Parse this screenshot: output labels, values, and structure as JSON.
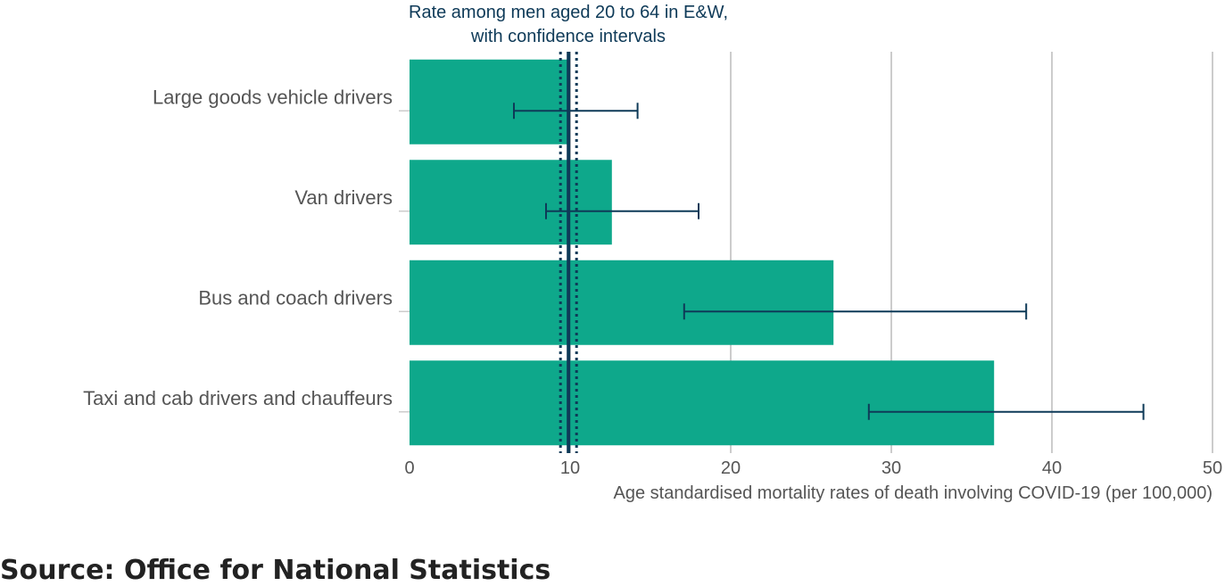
{
  "chart_data": {
    "type": "bar",
    "orientation": "horizontal",
    "categories": [
      "Large goods vehicle drivers",
      "Van drivers",
      "Bus and coach drivers",
      "Taxi and cab drivers and chauffeurs"
    ],
    "values": [
      9.9,
      12.6,
      26.4,
      36.4
    ],
    "ci_lower": [
      6.5,
      8.5,
      17.1,
      28.6
    ],
    "ci_upper": [
      14.2,
      18.0,
      38.4,
      45.7
    ],
    "reference_line": {
      "value": 9.9,
      "ci_lower": 9.4,
      "ci_upper": 10.4,
      "label_lines": [
        "Rate among men aged 20 to 64 in E&W,",
        "with confidence intervals"
      ]
    },
    "xlabel": "Age standardised mortality rates of death involving COVID-19 (per 100,000)",
    "xlim": [
      0,
      50
    ],
    "xticks": [
      0,
      10,
      20,
      30,
      40,
      50
    ],
    "grid": true,
    "colors": {
      "bar": "#0ea88b",
      "error": "#0e3a58",
      "reference": "#0e3a58",
      "grid": "#cccccc"
    }
  },
  "source": "Source: Office for National Statistics"
}
